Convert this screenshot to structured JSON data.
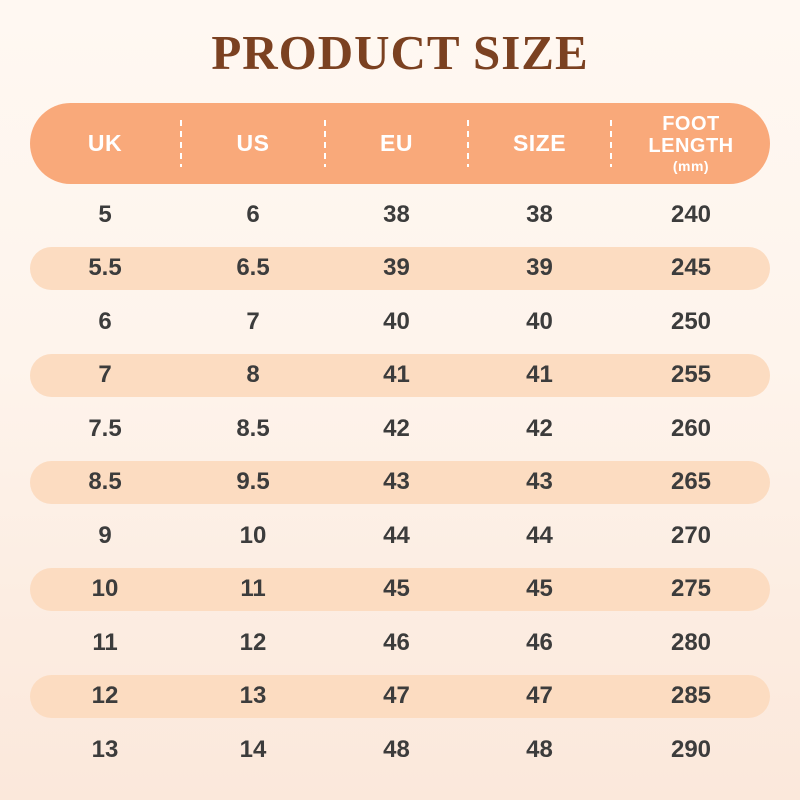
{
  "title": "PRODUCT SIZE",
  "chart_data": {
    "type": "table",
    "title": "PRODUCT SIZE",
    "columns": [
      "UK",
      "US",
      "EU",
      "SIZE",
      "FOOT LENGTH"
    ],
    "foot_length_unit": "(mm)",
    "rows": [
      [
        "5",
        "6",
        "38",
        "38",
        "240"
      ],
      [
        "5.5",
        "6.5",
        "39",
        "39",
        "245"
      ],
      [
        "6",
        "7",
        "40",
        "40",
        "250"
      ],
      [
        "7",
        "8",
        "41",
        "41",
        "255"
      ],
      [
        "7.5",
        "8.5",
        "42",
        "42",
        "260"
      ],
      [
        "8.5",
        "9.5",
        "43",
        "43",
        "265"
      ],
      [
        "9",
        "10",
        "44",
        "44",
        "270"
      ],
      [
        "10",
        "11",
        "45",
        "45",
        "275"
      ],
      [
        "11",
        "12",
        "46",
        "46",
        "280"
      ],
      [
        "12",
        "13",
        "47",
        "47",
        "285"
      ],
      [
        "13",
        "14",
        "48",
        "48",
        "290"
      ]
    ],
    "layout_hints": {
      "alternating_row_style": "odd rows (2nd, 4th, ...) are peach rounded pills",
      "header_style": "solid orange rounded pill with white dashed column dividers"
    }
  },
  "colors": {
    "title_brown": "#7B4121",
    "header_orange": "#F9A97A",
    "header_text": "#FFFFFF",
    "row_peach": "#FCDCC1",
    "background_top": "#FFF8F2",
    "background_bottom": "#FBE8DB",
    "cell_text": "#3C3C3C"
  }
}
